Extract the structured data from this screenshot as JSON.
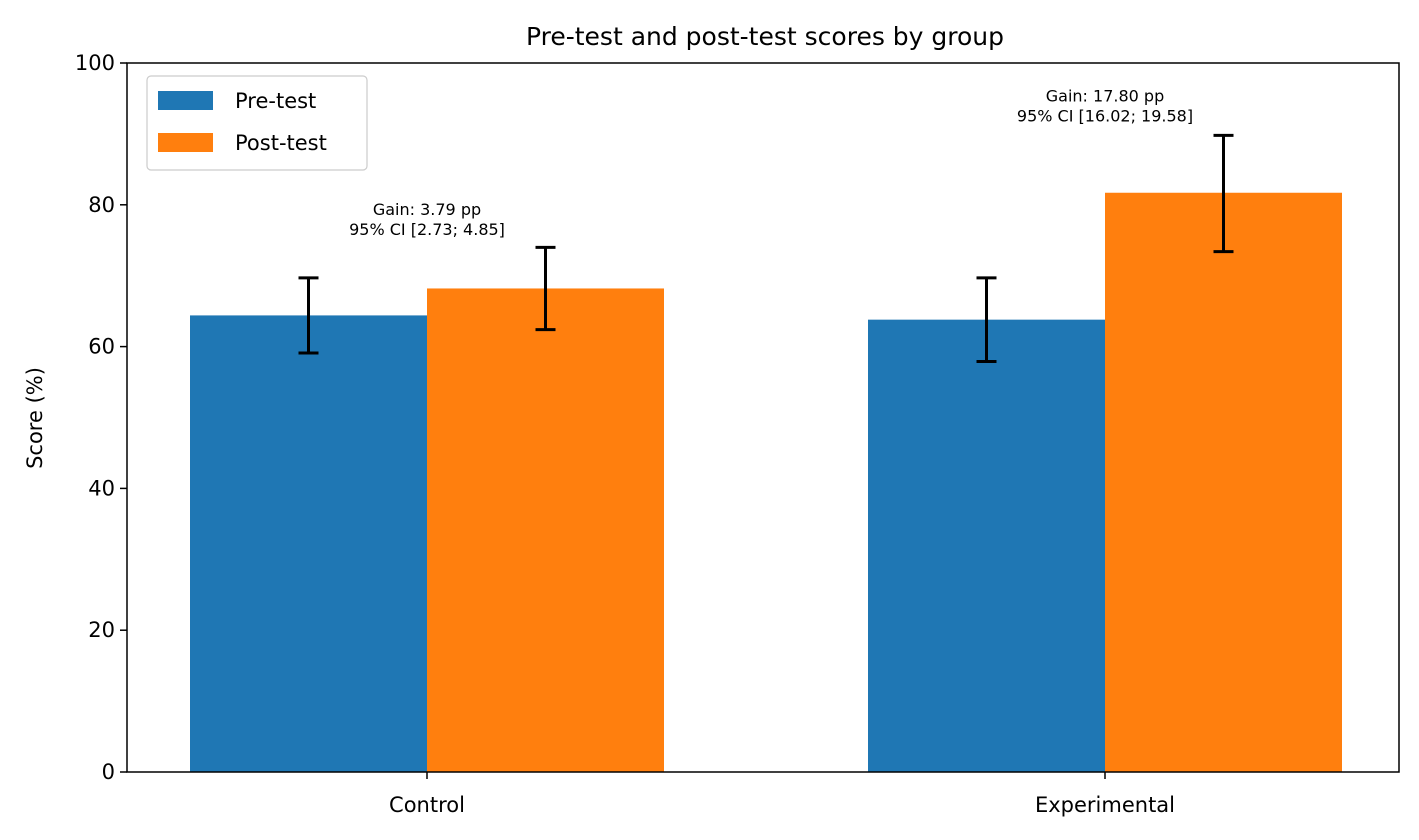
{
  "chart_data": {
    "type": "bar",
    "title": "Pre-test and post-test scores by group",
    "xlabel": "",
    "ylabel": "Score (%)",
    "ylim": [
      0,
      100
    ],
    "yticks": [
      0,
      20,
      40,
      60,
      80,
      100
    ],
    "categories": [
      "Control",
      "Experimental"
    ],
    "series": [
      {
        "name": "Pre-test",
        "color": "#1f77b4",
        "values": [
          64.4,
          63.8
        ],
        "error": [
          [
            59.1,
            69.7
          ],
          [
            57.9,
            69.7
          ]
        ]
      },
      {
        "name": "Post-test",
        "color": "#ff7f0e",
        "values": [
          68.2,
          81.7
        ],
        "error": [
          [
            62.4,
            74.0
          ],
          [
            73.4,
            89.8
          ]
        ]
      }
    ],
    "annotations": [
      {
        "category": "Control",
        "line1": "Gain: 3.79 pp",
        "line2": "95% CI [2.73; 4.85]",
        "y": 76
      },
      {
        "category": "Experimental",
        "line1": "Gain: 17.80 pp",
        "line2": "95% CI [16.02; 19.58]",
        "y": 92
      }
    ],
    "legend_position": "top-left",
    "grid": false
  }
}
